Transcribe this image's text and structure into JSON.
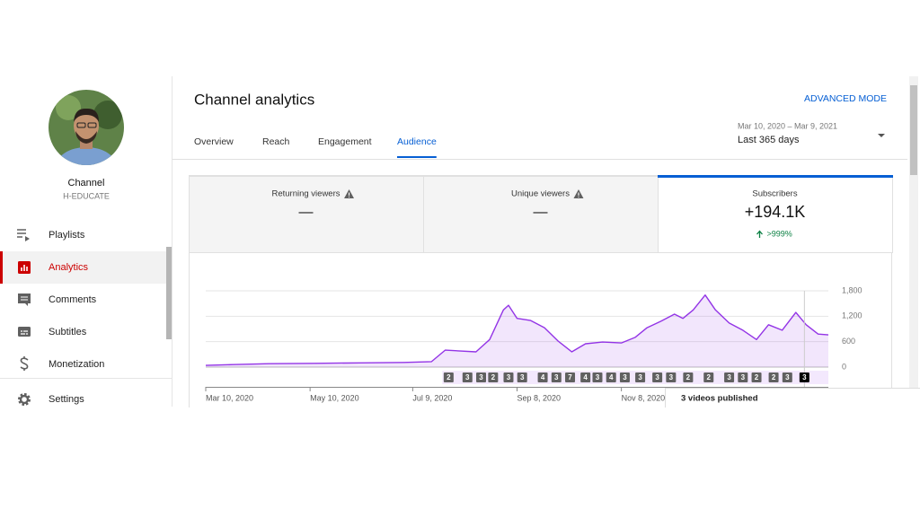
{
  "sidebar": {
    "channel_name": "Channel",
    "channel_handle": "H-EDUCATE",
    "menu": [
      "Playlists",
      "Analytics",
      "Comments",
      "Subtitles",
      "Monetization"
    ],
    "active_item": 1,
    "settings": "Settings"
  },
  "header": {
    "title": "Channel analytics",
    "advanced_mode": "ADVANCED MODE",
    "tabs": [
      "Overview",
      "Reach",
      "Engagement",
      "Audience"
    ],
    "active_tab": 3,
    "date_range": "Mar 10, 2020 – Mar 9, 2021",
    "period": "Last 365 days"
  },
  "cards": [
    {
      "title": "Returning viewers",
      "value": "—"
    },
    {
      "title": "Unique viewers",
      "value": "—"
    },
    {
      "title": "Subscribers",
      "value": "+194.1K",
      "change": ">999%"
    }
  ],
  "selected_card": 2,
  "chart_data": {
    "type": "line",
    "color": "#9334e6",
    "fill": true,
    "grid": true,
    "x": [
      "2020-03-10",
      "2020-03-26",
      "2020-04-16",
      "2020-05-13",
      "2020-06-08",
      "2020-07-04",
      "2020-07-20",
      "2020-07-28",
      "2020-08-15",
      "2020-08-23",
      "2020-08-31",
      "2020-09-03",
      "2020-09-08",
      "2020-09-16",
      "2020-09-24",
      "2020-10-02",
      "2020-10-10",
      "2020-10-18",
      "2020-10-28",
      "2020-11-08",
      "2020-11-16",
      "2020-11-23",
      "2020-12-01",
      "2020-12-09",
      "2020-12-14",
      "2020-12-20",
      "2020-12-27",
      "2021-01-02",
      "2021-01-10",
      "2021-01-18",
      "2021-01-26",
      "2021-02-02",
      "2021-02-10",
      "2021-02-18",
      "2021-02-24",
      "2021-03-03",
      "2021-03-09"
    ],
    "values": [
      40,
      60,
      80,
      90,
      100,
      110,
      130,
      400,
      360,
      650,
      1350,
      1460,
      1150,
      1100,
      930,
      615,
      360,
      550,
      590,
      570,
      700,
      930,
      1080,
      1250,
      1150,
      1350,
      1700,
      1350,
      1040,
      870,
      650,
      1000,
      870,
      1290,
      1000,
      780,
      760
    ],
    "xlim": [
      "2020-03-10",
      "2021-03-09"
    ],
    "xticks": [
      {
        "value": "2020-03-10",
        "label": "Mar 10, 2020"
      },
      {
        "value": "2020-05-10",
        "label": "May 10, 2020"
      },
      {
        "value": "2020-07-09",
        "label": "Jul 9, 2020"
      },
      {
        "value": "2020-09-08",
        "label": "Sep 8, 2020"
      },
      {
        "value": "2020-11-08",
        "label": "Nov 8, 2020"
      }
    ],
    "ylim": [
      0,
      1800
    ],
    "yticks": [
      0,
      600,
      {
        "value": 1200,
        "label": "1,200"
      },
      {
        "value": 1800,
        "label": "1,800"
      }
    ],
    "videos_published": {
      "x": [
        "2020-07-30",
        "2020-08-10",
        "2020-08-18",
        "2020-08-25",
        "2020-09-03",
        "2020-09-11",
        "2020-09-23",
        "2020-10-01",
        "2020-10-09",
        "2020-10-18",
        "2020-10-25",
        "2020-11-02",
        "2020-11-10",
        "2020-11-19",
        "2020-11-29",
        "2020-12-07",
        "2020-12-17",
        "2020-12-29",
        "2021-01-10",
        "2021-01-18",
        "2021-01-26",
        "2021-02-05",
        "2021-02-13",
        "2021-02-23"
      ],
      "counts": [
        2,
        3,
        3,
        2,
        3,
        3,
        4,
        3,
        7,
        4,
        3,
        4,
        3,
        3,
        3,
        3,
        2,
        2,
        3,
        3,
        2,
        2,
        3,
        3
      ],
      "selected": 23,
      "selected_label": "3 videos published"
    }
  }
}
